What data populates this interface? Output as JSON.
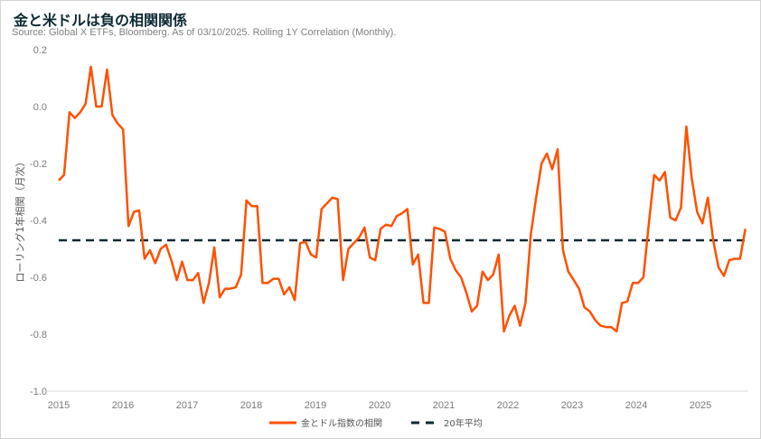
{
  "title": "金と米ドルは負の相関関係",
  "subtitle": "Source: Global X ETFs, Bloomberg. As of 03/10/2025. Rolling 1Y Correlation (Monthly).",
  "colors": {
    "series": "#ff5000",
    "average": "#0c2a33",
    "text": "#7a7a7a"
  },
  "chart_data": {
    "type": "line",
    "title": "金と米ドルは負の相関関係",
    "xlabel": "",
    "ylabel": "ローリング1年相関（月次）",
    "xlim": [
      2015,
      2025.75
    ],
    "ylim": [
      -1.0,
      0.2
    ],
    "x_start": 2015.0,
    "x_end": 2025.7,
    "x_ticks": [
      "2015",
      "2016",
      "2017",
      "2018",
      "2019",
      "2020",
      "2021",
      "2022",
      "2023",
      "2024",
      "2025"
    ],
    "y_ticks": [
      "0.2",
      "0.0",
      "-0.2",
      "-0.4",
      "-0.6",
      "-0.8",
      "-1.0"
    ],
    "grid": false,
    "legend_position": "bottom-center",
    "series": [
      {
        "name": "金とドル指数の相関",
        "style": "solid",
        "values": [
          -0.26,
          -0.24,
          -0.02,
          -0.04,
          -0.02,
          0.01,
          0.14,
          0.0,
          0.0,
          0.13,
          -0.03,
          -0.06,
          -0.08,
          -0.42,
          -0.37,
          -0.365,
          -0.535,
          -0.505,
          -0.55,
          -0.5,
          -0.485,
          -0.54,
          -0.61,
          -0.545,
          -0.61,
          -0.61,
          -0.585,
          -0.69,
          -0.62,
          -0.495,
          -0.67,
          -0.64,
          -0.64,
          -0.635,
          -0.59,
          -0.33,
          -0.35,
          -0.35,
          -0.62,
          -0.62,
          -0.605,
          -0.605,
          -0.66,
          -0.635,
          -0.68,
          -0.48,
          -0.475,
          -0.52,
          -0.53,
          -0.36,
          -0.34,
          -0.32,
          -0.325,
          -0.61,
          -0.5,
          -0.48,
          -0.46,
          -0.425,
          -0.53,
          -0.54,
          -0.43,
          -0.415,
          -0.42,
          -0.385,
          -0.375,
          -0.36,
          -0.555,
          -0.52,
          -0.69,
          -0.69,
          -0.425,
          -0.43,
          -0.44,
          -0.535,
          -0.575,
          -0.6,
          -0.655,
          -0.72,
          -0.7,
          -0.58,
          -0.61,
          -0.59,
          -0.52,
          -0.79,
          -0.735,
          -0.7,
          -0.77,
          -0.69,
          -0.45,
          -0.32,
          -0.2,
          -0.165,
          -0.22,
          -0.15,
          -0.505,
          -0.58,
          -0.61,
          -0.64,
          -0.705,
          -0.72,
          -0.75,
          -0.77,
          -0.775,
          -0.775,
          -0.79,
          -0.69,
          -0.685,
          -0.62,
          -0.62,
          -0.6,
          -0.41,
          -0.24,
          -0.26,
          -0.23,
          -0.39,
          -0.4,
          -0.355,
          -0.07,
          -0.25,
          -0.37,
          -0.41,
          -0.32,
          -0.47,
          -0.565,
          -0.595,
          -0.54,
          -0.535,
          -0.535,
          -0.43
        ]
      },
      {
        "name": "20年平均",
        "style": "dashed",
        "values": [
          -0.47
        ]
      }
    ]
  }
}
